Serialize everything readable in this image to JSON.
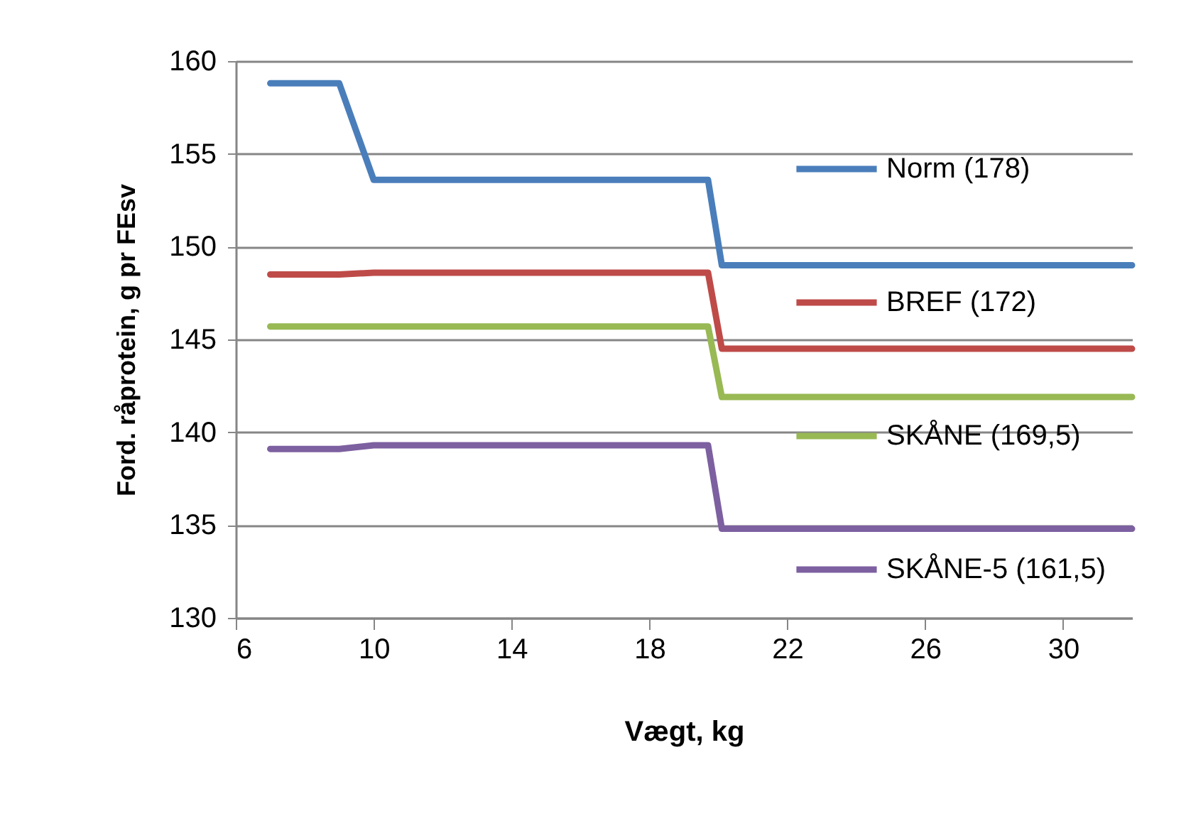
{
  "chart_data": {
    "type": "line",
    "xlabel": "Vægt, kg",
    "ylabel": "Ford. råprotein, g pr FEsv",
    "xlim": [
      6,
      32
    ],
    "xticks": [
      6,
      10,
      14,
      18,
      22,
      26,
      30
    ],
    "ylim": [
      130,
      160
    ],
    "yticks": [
      130,
      135,
      140,
      145,
      150,
      155,
      160
    ],
    "grid": "y",
    "legend": "right",
    "marker": "none",
    "line_style": "solid",
    "x": [
      7,
      9,
      10,
      19.7,
      20.1,
      32
    ],
    "series": [
      {
        "name": "Norm (178)",
        "color": "#4a7ebb",
        "values": [
          158.8,
          158.8,
          153.6,
          153.6,
          149.0,
          149.0
        ]
      },
      {
        "name": "BREF (172)",
        "color": "#be4b48",
        "values": [
          148.5,
          148.5,
          148.6,
          148.6,
          144.5,
          144.5
        ]
      },
      {
        "name": "SKÅNE (169,5)",
        "color": "#98b954",
        "values": [
          145.7,
          145.7,
          145.7,
          145.7,
          141.9,
          141.9
        ]
      },
      {
        "name": "SKÅNE-5 (161,5)",
        "color": "#7d60a0",
        "values": [
          139.1,
          139.1,
          139.3,
          139.3,
          134.8,
          134.8
        ]
      }
    ]
  }
}
